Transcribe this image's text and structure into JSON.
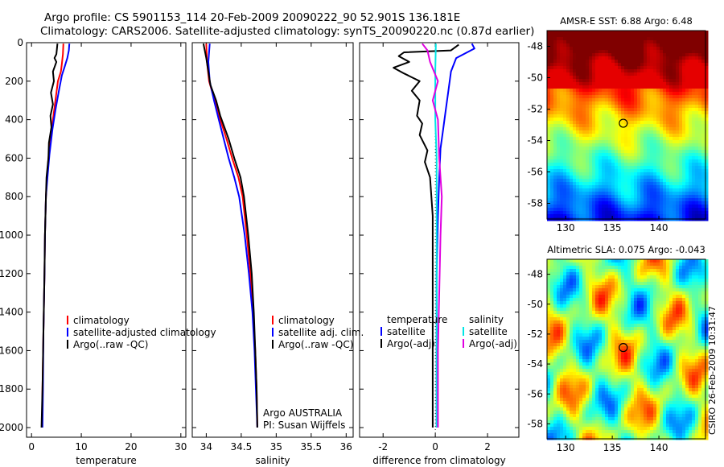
{
  "title_line1": "Argo profile: CS 5901153_114 20-Feb-2009 20090222_90 52.901S 136.181E",
  "title_line2": "Climatology: CARS2006. Satellite-adjusted climatology: synTS_20090220.nc (0.87d earlier)",
  "credit": "CSIRO 26-Feb-2009 10:31:47",
  "colors": {
    "clim": "#ff0000",
    "sat": "#0000ff",
    "argo": "#000000",
    "sat_diff_sal": "#00e5e5",
    "argo_diff_sal": "#e000e0"
  },
  "chart_data": [
    {
      "type": "line",
      "id": "temperature",
      "xlabel": "temperature",
      "xlim": [
        -1,
        31
      ],
      "ylim": [
        2050,
        0
      ],
      "xticks": [
        "0",
        "10",
        "20",
        "30"
      ],
      "yticks": [
        "0",
        "200",
        "400",
        "600",
        "800",
        "1000",
        "1200",
        "1400",
        "1600",
        "1800",
        "2000"
      ],
      "legend": [
        "climatology",
        "satellite-adjusted climatology",
        "Argo(..raw -QC)"
      ],
      "series": [
        {
          "name": "climatology",
          "color": "clim",
          "points": [
            [
              6.4,
              5
            ],
            [
              6.3,
              60
            ],
            [
              6.1,
              110
            ],
            [
              5.9,
              150
            ],
            [
              5.3,
              200
            ],
            [
              4.8,
              300
            ],
            [
              4.3,
              400
            ],
            [
              3.8,
              500
            ],
            [
              3.4,
              600
            ],
            [
              3.1,
              700
            ],
            [
              2.9,
              800
            ],
            [
              2.7,
              1000
            ],
            [
              2.6,
              1200
            ],
            [
              2.4,
              1500
            ],
            [
              2.2,
              1800
            ],
            [
              2.1,
              2000
            ]
          ]
        },
        {
          "name": "satellite-adjusted climatology",
          "color": "sat",
          "points": [
            [
              7.6,
              5
            ],
            [
              7.5,
              40
            ],
            [
              7.2,
              80
            ],
            [
              6.6,
              130
            ],
            [
              6.1,
              170
            ],
            [
              5.5,
              250
            ],
            [
              4.8,
              350
            ],
            [
              4.2,
              450
            ],
            [
              3.6,
              580
            ],
            [
              3.2,
              700
            ],
            [
              2.9,
              800
            ],
            [
              2.7,
              1000
            ],
            [
              2.6,
              1200
            ],
            [
              2.4,
              1500
            ],
            [
              2.3,
              1800
            ],
            [
              2.2,
              2000
            ]
          ]
        },
        {
          "name": "Argo(..raw -QC)",
          "color": "argo",
          "points": [
            [
              5.2,
              5
            ],
            [
              5.0,
              60
            ],
            [
              4.6,
              80
            ],
            [
              5.0,
              100
            ],
            [
              4.3,
              150
            ],
            [
              4.5,
              200
            ],
            [
              3.9,
              260
            ],
            [
              4.3,
              320
            ],
            [
              3.8,
              380
            ],
            [
              4.0,
              440
            ],
            [
              3.5,
              520
            ],
            [
              3.4,
              600
            ],
            [
              3.0,
              700
            ],
            [
              2.9,
              800
            ],
            [
              2.7,
              1000
            ],
            [
              2.6,
              1200
            ],
            [
              2.4,
              1500
            ],
            [
              2.2,
              1800
            ],
            [
              2.0,
              2000
            ]
          ]
        }
      ]
    },
    {
      "type": "line",
      "id": "salinity",
      "xlabel": "salinity",
      "xlim": [
        33.8,
        36.1
      ],
      "ylim": [
        2050,
        0
      ],
      "xticks": [
        "34",
        "34.5",
        "35",
        "35.5",
        "36"
      ],
      "legend": [
        "climatology",
        "satellite adj. clim.",
        "Argo(..raw -QC)"
      ],
      "annotation": [
        "Argo AUSTRALIA",
        "PI: Susan Wijffels"
      ],
      "series": [
        {
          "name": "climatology",
          "color": "clim",
          "points": [
            [
              34.0,
              5
            ],
            [
              34.01,
              100
            ],
            [
              34.04,
              200
            ],
            [
              34.12,
              300
            ],
            [
              34.2,
              400
            ],
            [
              34.29,
              500
            ],
            [
              34.37,
              600
            ],
            [
              34.46,
              700
            ],
            [
              34.52,
              800
            ],
            [
              34.58,
              1000
            ],
            [
              34.63,
              1200
            ],
            [
              34.67,
              1400
            ],
            [
              34.7,
              1600
            ],
            [
              34.72,
              1800
            ],
            [
              34.73,
              2000
            ]
          ]
        },
        {
          "name": "satellite adj. clim.",
          "color": "sat",
          "points": [
            [
              34.05,
              5
            ],
            [
              34.03,
              100
            ],
            [
              34.05,
              200
            ],
            [
              34.11,
              300
            ],
            [
              34.18,
              400
            ],
            [
              34.25,
              500
            ],
            [
              34.32,
              600
            ],
            [
              34.4,
              700
            ],
            [
              34.47,
              800
            ],
            [
              34.55,
              1000
            ],
            [
              34.61,
              1200
            ],
            [
              34.66,
              1400
            ],
            [
              34.69,
              1600
            ],
            [
              34.71,
              1800
            ],
            [
              34.73,
              2000
            ]
          ]
        },
        {
          "name": "Argo(..raw -QC)",
          "color": "argo",
          "points": [
            [
              33.96,
              5
            ],
            [
              34.0,
              80
            ],
            [
              34.03,
              150
            ],
            [
              34.06,
              220
            ],
            [
              34.14,
              300
            ],
            [
              34.2,
              380
            ],
            [
              34.32,
              500
            ],
            [
              34.4,
              600
            ],
            [
              34.49,
              700
            ],
            [
              34.54,
              800
            ],
            [
              34.6,
              1000
            ],
            [
              34.65,
              1200
            ],
            [
              34.68,
              1400
            ],
            [
              34.7,
              1600
            ],
            [
              34.72,
              1800
            ],
            [
              34.73,
              2000
            ]
          ]
        }
      ]
    },
    {
      "type": "line",
      "id": "difference",
      "xlabel": "difference from climatology",
      "xlim": [
        -2.9,
        3.2
      ],
      "ylim": [
        2050,
        0
      ],
      "xticks": [
        "-2",
        "0",
        "2"
      ],
      "legend_left_title": "temperature",
      "legend_left": [
        "satellite",
        "Argo(-adj)"
      ],
      "legend_right_title": "salinity",
      "legend_right": [
        "satellite",
        "Argo(-adj)"
      ],
      "series": [
        {
          "name": "temperature satellite",
          "color": "sat",
          "points": [
            [
              1.4,
              5
            ],
            [
              1.5,
              30
            ],
            [
              0.8,
              80
            ],
            [
              0.6,
              150
            ],
            [
              0.5,
              250
            ],
            [
              0.4,
              350
            ],
            [
              0.3,
              450
            ],
            [
              0.2,
              550
            ],
            [
              0.15,
              700
            ],
            [
              0.1,
              900
            ],
            [
              0.05,
              1200
            ],
            [
              0.05,
              1500
            ],
            [
              0.05,
              1800
            ],
            [
              0.05,
              2000
            ]
          ]
        },
        {
          "name": "temperature Argo(-adj)",
          "color": "argo",
          "points": [
            [
              0.9,
              10
            ],
            [
              0.6,
              40
            ],
            [
              -1.2,
              50
            ],
            [
              -1.4,
              70
            ],
            [
              -1.0,
              100
            ],
            [
              -1.6,
              130
            ],
            [
              -1.2,
              160
            ],
            [
              -0.6,
              200
            ],
            [
              -0.9,
              250
            ],
            [
              -0.6,
              300
            ],
            [
              -0.7,
              380
            ],
            [
              -0.5,
              420
            ],
            [
              -0.6,
              480
            ],
            [
              -0.3,
              560
            ],
            [
              -0.4,
              620
            ],
            [
              -0.2,
              700
            ],
            [
              -0.1,
              900
            ],
            [
              -0.1,
              1200
            ],
            [
              -0.1,
              1600
            ],
            [
              -0.1,
              2000
            ]
          ]
        },
        {
          "name": "salinity satellite",
          "color": "sat_diff_sal",
          "points": [
            [
              0.02,
              5
            ],
            [
              0.0,
              150
            ],
            [
              0.0,
              400
            ],
            [
              0.05,
              600
            ],
            [
              0.05,
              900
            ],
            [
              0.05,
              1200
            ],
            [
              0.05,
              1500
            ],
            [
              0.05,
              1800
            ],
            [
              0.05,
              2000
            ]
          ]
        },
        {
          "name": "salinity Argo(-adj)",
          "color": "argo_diff_sal",
          "points": [
            [
              -0.5,
              5
            ],
            [
              -0.3,
              40
            ],
            [
              -0.2,
              100
            ],
            [
              0.1,
              200
            ],
            [
              -0.1,
              300
            ],
            [
              0.1,
              400
            ],
            [
              0.15,
              600
            ],
            [
              0.25,
              800
            ],
            [
              0.2,
              1000
            ],
            [
              0.15,
              1300
            ],
            [
              0.1,
              1600
            ],
            [
              0.1,
              2000
            ]
          ]
        }
      ]
    },
    {
      "type": "heatmap",
      "id": "sst_map",
      "title": "AMSR-E SST: 6.88 Argo: 6.48",
      "xlim": [
        128,
        145
      ],
      "ylim": [
        -59,
        -47
      ],
      "xticks": [
        "130",
        "135",
        "140"
      ],
      "yticks": [
        "-48",
        "-50",
        "-52",
        "-54",
        "-56",
        "-58"
      ],
      "argo_position": [
        136.18,
        -52.9
      ]
    },
    {
      "type": "heatmap",
      "id": "sla_map",
      "title": "Altimetric SLA: 0.075 Argo: -0.043",
      "xlim": [
        128,
        145
      ],
      "ylim": [
        -59,
        -47
      ],
      "xticks": [
        "130",
        "135",
        "140"
      ],
      "yticks": [
        "-48",
        "-50",
        "-52",
        "-54",
        "-56",
        "-58"
      ],
      "argo_position": [
        136.18,
        -52.9
      ]
    }
  ]
}
